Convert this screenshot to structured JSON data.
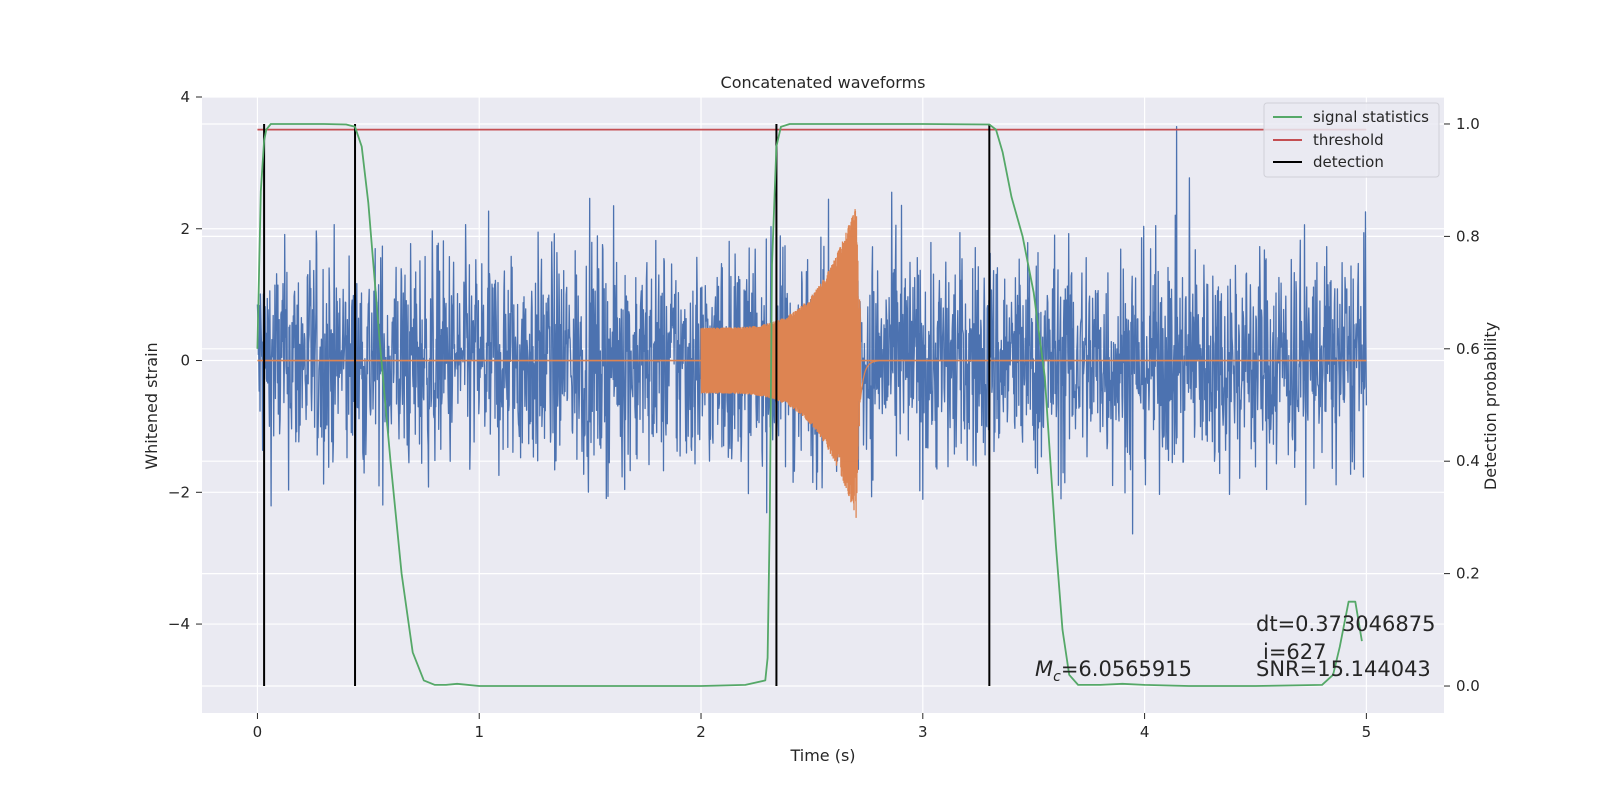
{
  "chart_data": {
    "type": "line",
    "title": "Concatenated waveforms",
    "xlabel": "Time (s)",
    "ylabel_left": "Whitened strain",
    "ylabel_right": "Detection probability",
    "xlim": [
      -0.25,
      5.35
    ],
    "ylim_left": [
      -5.35,
      4.0
    ],
    "ylim_right": [
      -0.048,
      1.048
    ],
    "x_ticks": [
      0,
      1,
      2,
      3,
      4,
      5
    ],
    "x_tick_labels": [
      "0",
      "1",
      "2",
      "3",
      "4",
      "5"
    ],
    "y_left_ticks": [
      4,
      2,
      0,
      -2,
      -4
    ],
    "y_left_tick_labels": [
      "4",
      "2",
      "0",
      "−2",
      "−4"
    ],
    "y_right_ticks": [
      1.0,
      0.8,
      0.6,
      0.4,
      0.2,
      0.0
    ],
    "y_right_tick_labels": [
      "1.0",
      "0.8",
      "0.6",
      "0.4",
      "0.2",
      "0.0"
    ],
    "grid": true,
    "legend_position": "top-right",
    "colors": {
      "background": "#eaeaf2",
      "grid": "#ffffff",
      "noise": "#4c72b0",
      "template": "#dd8452",
      "signal_statistics": "#55a868",
      "threshold": "#c44e52",
      "detection": "#000000"
    },
    "series": [
      {
        "name": "signal statistics",
        "axis": "right",
        "x": [
          0,
          0.015,
          0.03,
          0.04,
          0.06,
          0.1,
          0.2,
          0.3,
          0.4,
          0.44,
          0.47,
          0.5,
          0.55,
          0.6,
          0.65,
          0.7,
          0.75,
          0.8,
          0.85,
          0.9,
          1.0,
          1.5,
          2.0,
          2.2,
          2.29,
          2.3,
          2.31,
          2.32,
          2.34,
          2.36,
          2.4,
          2.6,
          3.0,
          3.3,
          3.33,
          3.36,
          3.4,
          3.45,
          3.5,
          3.55,
          3.6,
          3.63,
          3.66,
          3.7,
          3.8,
          3.9,
          4.0,
          4.2,
          4.5,
          4.8,
          4.85,
          4.88,
          4.92,
          4.95,
          4.98
        ],
        "y": [
          0.6,
          0.88,
          0.97,
          0.99,
          1.0,
          1.0,
          1.0,
          1.0,
          0.999,
          0.995,
          0.96,
          0.86,
          0.62,
          0.4,
          0.2,
          0.06,
          0.01,
          0.002,
          0.002,
          0.004,
          0.0,
          0.0,
          0.0,
          0.002,
          0.01,
          0.05,
          0.3,
          0.75,
          0.96,
          0.995,
          1.0,
          1.0,
          1.0,
          0.999,
          0.99,
          0.95,
          0.87,
          0.8,
          0.7,
          0.55,
          0.25,
          0.1,
          0.02,
          0.002,
          0.002,
          0.004,
          0.002,
          0.0,
          0.0,
          0.002,
          0.02,
          0.07,
          0.15,
          0.15,
          0.08
        ]
      },
      {
        "name": "threshold",
        "axis": "right",
        "x": [
          0,
          5
        ],
        "y": [
          0.99,
          0.99
        ]
      },
      {
        "name": "detection",
        "axis": "right",
        "x_events": [
          0.03,
          0.44,
          2.34,
          3.3
        ],
        "y_range": [
          0,
          1
        ]
      },
      {
        "axis": "left",
        "kind": "noise",
        "x_range": [
          0,
          5
        ],
        "envelope": [
          -2.5,
          2.5
        ]
      },
      {
        "axis": "left",
        "kind": "chirp",
        "x_range": [
          2.0,
          2.8
        ],
        "peak_time": 2.7,
        "amplitude_start": 0.5,
        "amplitude_peak": 2.4
      }
    ],
    "legend": [
      "signal statistics",
      "threshold",
      "detection"
    ],
    "annotations": {
      "mc_label": "=6.0565915",
      "dt": "dt=0.373046875",
      "i": "i=627",
      "snr": "SNR=15.144043"
    }
  }
}
